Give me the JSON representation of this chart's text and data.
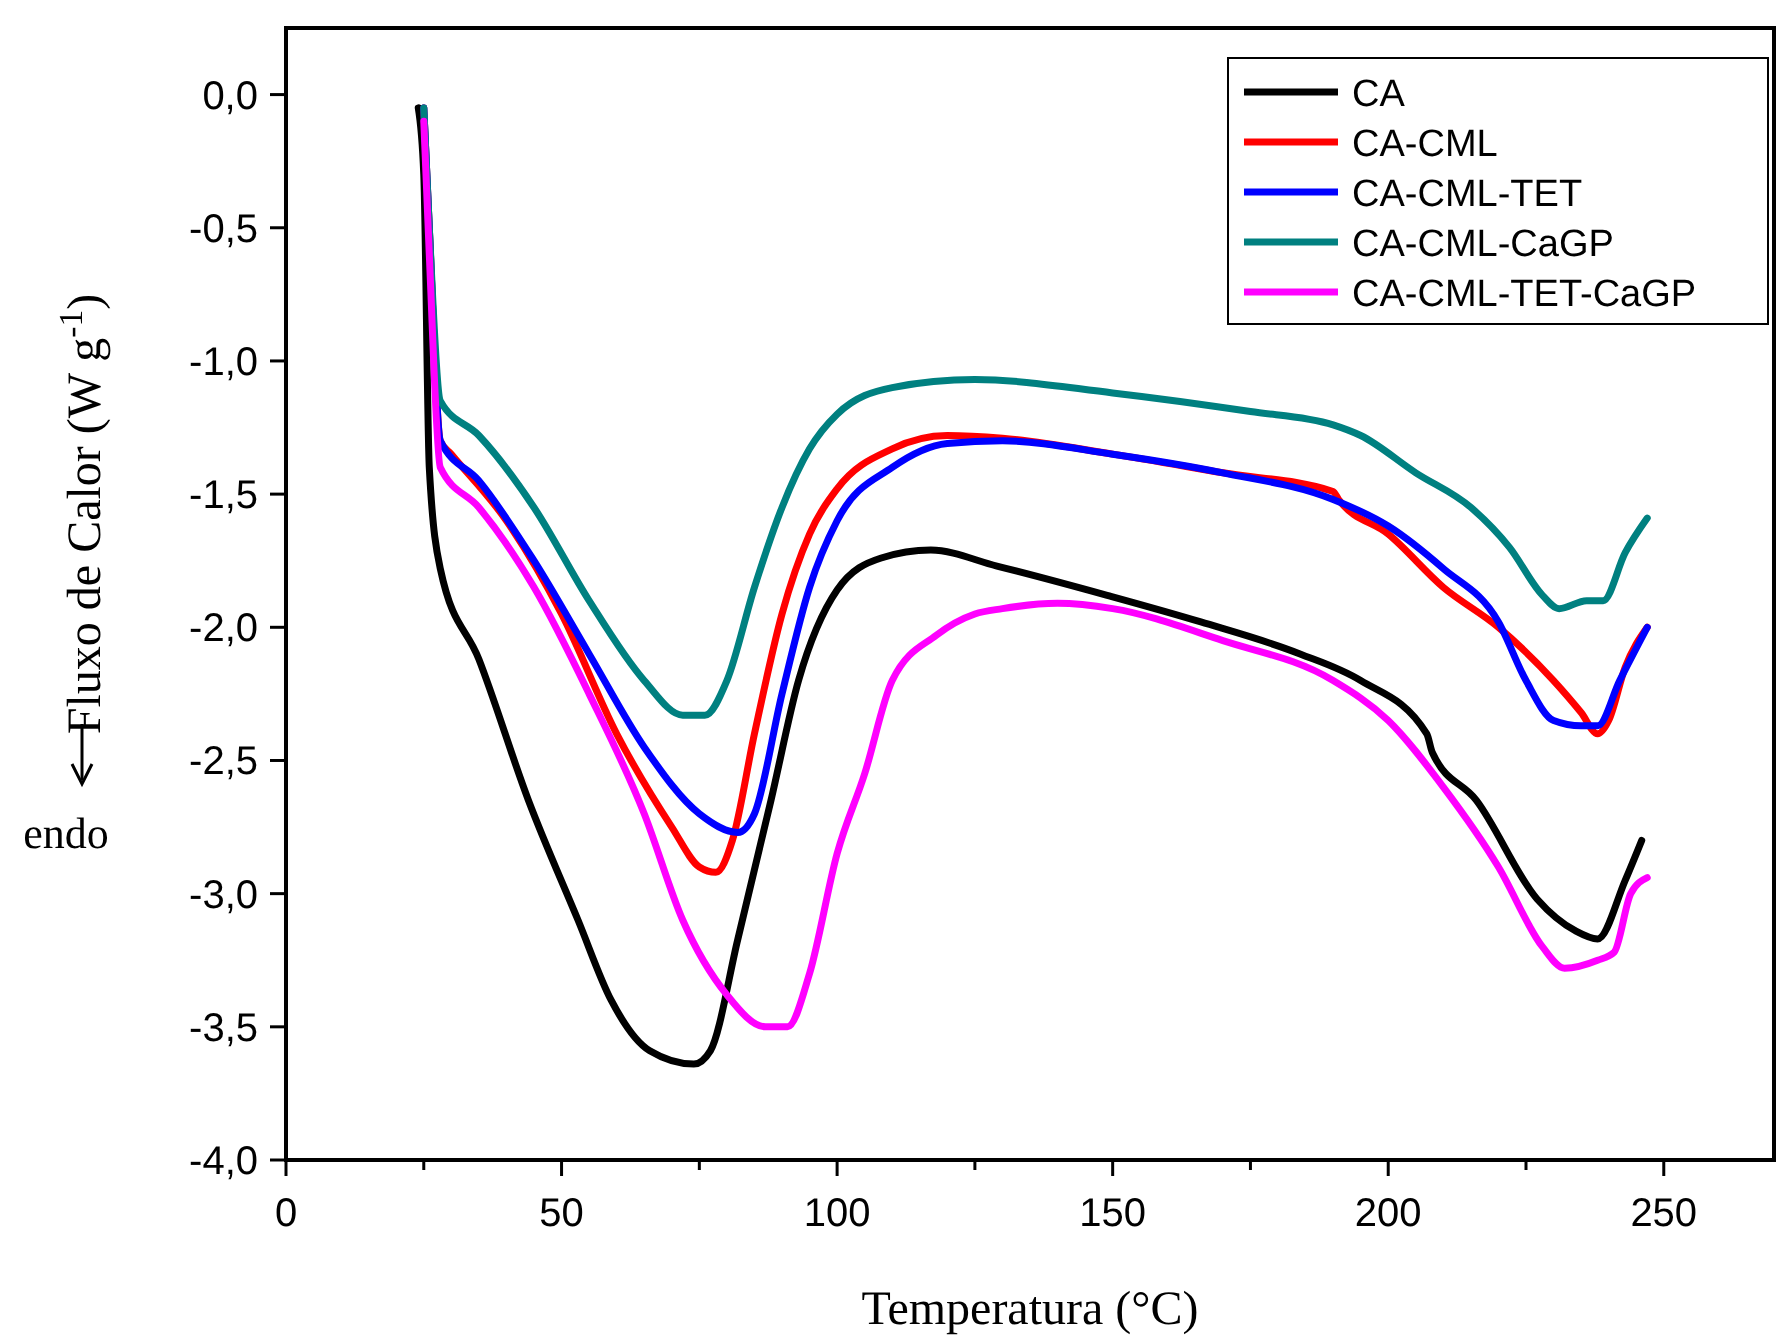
{
  "chart_data": {
    "type": "line",
    "xlabel": "Temperatura (°C)",
    "ylabel": "Fluxo de Calor (W g$^{-1}$)",
    "annotations": [
      "endo"
    ],
    "xlim": [
      0,
      270
    ],
    "ylim": [
      -4.0,
      0.25
    ],
    "xticks": [
      0,
      {
        "value": 25,
        "label": null
      },
      50,
      {
        "value": 75,
        "label": null
      },
      100,
      {
        "value": 125,
        "label": null
      },
      150,
      {
        "value": 175,
        "label": null
      },
      200,
      {
        "value": 225,
        "label": null
      },
      250
    ],
    "yticks": [
      {
        "value": -4,
        "label": "-4,0"
      },
      {
        "value": -3.5,
        "label": "-3,5"
      },
      {
        "value": -3,
        "label": "-3,0"
      },
      {
        "value": -2.5,
        "label": "-2,5"
      },
      {
        "value": -2,
        "label": "-2,0"
      },
      {
        "value": -1.5,
        "label": "-1,5"
      },
      {
        "value": -1,
        "label": "-1,0"
      },
      {
        "value": -0.5,
        "label": "-0,5"
      },
      {
        "value": 0,
        "label": "0,0"
      }
    ],
    "grid": false,
    "legend": "top right",
    "marker": "none",
    "line_style": "solid",
    "series": [
      {
        "name": "CA",
        "color": "#000000",
        "x": [
          24,
          25,
          26,
          28,
          35,
          44,
          53,
          59,
          66,
          74,
          77,
          82,
          88,
          93,
          100,
          108,
          117,
          129,
          149,
          166,
          184,
          195,
          207,
          208,
          216,
          227,
          234,
          238,
          243,
          246
        ],
        "values": [
          -0.05,
          -0.3,
          -1.4,
          -1.78,
          -2.12,
          -2.65,
          -3.1,
          -3.4,
          -3.59,
          -3.64,
          -3.59,
          -3.17,
          -2.65,
          -2.2,
          -1.86,
          -1.74,
          -1.71,
          -1.77,
          -1.88,
          -1.98,
          -2.1,
          -2.2,
          -2.4,
          -2.47,
          -2.65,
          -3.02,
          -3.14,
          -3.17,
          -2.95,
          -2.8
        ]
      },
      {
        "name": "CA-CML",
        "color": "#ff0000",
        "x": [
          25,
          26,
          28,
          30,
          40,
          50,
          60,
          70,
          75,
          78,
          81,
          85,
          90,
          95,
          100,
          110,
          120,
          130,
          150,
          170,
          190,
          191,
          200,
          210,
          220,
          230,
          235,
          238,
          240,
          243,
          247
        ],
        "values": [
          -0.05,
          -0.5,
          -1.3,
          -1.35,
          -1.6,
          -1.95,
          -2.4,
          -2.75,
          -2.9,
          -2.92,
          -2.8,
          -2.4,
          -1.95,
          -1.65,
          -1.48,
          -1.33,
          -1.28,
          -1.29,
          -1.35,
          -1.42,
          -1.49,
          -1.52,
          -1.65,
          -1.85,
          -2.0,
          -2.2,
          -2.32,
          -2.4,
          -2.35,
          -2.15,
          -2.0
        ]
      },
      {
        "name": "CA-CML-TET",
        "color": "#0000ff",
        "x": [
          25,
          26,
          28,
          35,
          45,
          55,
          65,
          75,
          82,
          85,
          90,
          95,
          100,
          110,
          120,
          130,
          150,
          170,
          190,
          200,
          210,
          220,
          225,
          230,
          235,
          238,
          242,
          247
        ],
        "values": [
          -0.05,
          -0.5,
          -1.3,
          -1.45,
          -1.75,
          -2.1,
          -2.45,
          -2.7,
          -2.77,
          -2.7,
          -2.25,
          -1.85,
          -1.6,
          -1.4,
          -1.31,
          -1.3,
          -1.35,
          -1.42,
          -1.52,
          -1.62,
          -1.78,
          -1.98,
          -2.2,
          -2.35,
          -2.37,
          -2.37,
          -2.2,
          -2.0
        ]
      },
      {
        "name": "CA-CML-CaGP",
        "color": "#008080",
        "x": [
          25,
          26,
          28,
          35,
          45,
          55,
          65,
          72,
          76,
          80,
          85,
          90,
          95,
          100,
          110,
          125,
          150,
          175,
          190,
          195,
          205,
          215,
          222,
          228,
          231,
          236,
          239,
          243,
          247
        ],
        "values": [
          -0.05,
          -0.5,
          -1.15,
          -1.28,
          -1.55,
          -1.9,
          -2.2,
          -2.33,
          -2.33,
          -2.2,
          -1.85,
          -1.55,
          -1.33,
          -1.2,
          -1.1,
          -1.07,
          -1.12,
          -1.19,
          -1.24,
          -1.28,
          -1.42,
          -1.55,
          -1.7,
          -1.88,
          -1.93,
          -1.9,
          -1.9,
          -1.72,
          -1.59
        ]
      },
      {
        "name": "CA-CML-TET-CaGP",
        "color": "#ff00ff",
        "x": [
          25,
          26,
          28,
          35,
          45,
          55,
          65,
          72,
          80,
          87,
          91,
          95,
          100,
          105,
          110,
          118,
          125,
          130,
          140,
          150,
          170,
          190,
          200,
          210,
          220,
          228,
          232,
          238,
          241,
          244,
          247
        ],
        "values": [
          -0.1,
          -0.6,
          -1.4,
          -1.55,
          -1.85,
          -2.25,
          -2.7,
          -3.1,
          -3.38,
          -3.5,
          -3.5,
          -3.3,
          -2.85,
          -2.55,
          -2.2,
          -2.03,
          -1.95,
          -1.93,
          -1.91,
          -1.93,
          -2.05,
          -2.2,
          -2.35,
          -2.6,
          -2.9,
          -3.2,
          -3.28,
          -3.25,
          -3.22,
          -3.0,
          -2.94
        ]
      }
    ]
  }
}
